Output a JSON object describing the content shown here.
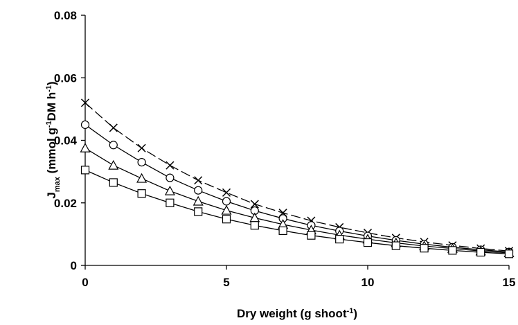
{
  "chart_data": {
    "type": "line",
    "xlabel": [
      "Dry weight (g shoot",
      "-1",
      ")"
    ],
    "ylabel": [
      "J",
      "max",
      "  (mmol g",
      "-1",
      "DM h",
      "-1",
      ")"
    ],
    "x": [
      0,
      1,
      2,
      3,
      4,
      5,
      6,
      7,
      8,
      9,
      10,
      11,
      12,
      13,
      14,
      15
    ],
    "xlim": [
      0,
      15
    ],
    "xticks": [
      0,
      5,
      10,
      15
    ],
    "ylim": [
      0,
      0.08
    ],
    "yticks": [
      0,
      0.02,
      0.04,
      0.06,
      0.08
    ],
    "series": [
      {
        "color": "#000000",
        "marker": "x",
        "dashed": true,
        "values": [
          0.052,
          0.044,
          0.0375,
          0.032,
          0.0272,
          0.0233,
          0.0196,
          0.0168,
          0.0143,
          0.0122,
          0.0104,
          0.0088,
          0.0075,
          0.0064,
          0.0054,
          0.0046
        ]
      },
      {
        "color": "#000000",
        "marker": "circle",
        "dashed": false,
        "values": [
          0.045,
          0.0385,
          0.033,
          0.028,
          0.024,
          0.0205,
          0.0175,
          0.015,
          0.0128,
          0.011,
          0.0094,
          0.008,
          0.0068,
          0.0058,
          0.005,
          0.0043
        ]
      },
      {
        "color": "#000000",
        "marker": "triangle",
        "dashed": false,
        "values": [
          0.0375,
          0.032,
          0.0278,
          0.0238,
          0.0205,
          0.0176,
          0.0152,
          0.0131,
          0.0113,
          0.0097,
          0.0084,
          0.0072,
          0.0062,
          0.0054,
          0.0046,
          0.004
        ]
      },
      {
        "color": "#000000",
        "marker": "square",
        "dashed": false,
        "values": [
          0.0305,
          0.0265,
          0.023,
          0.02,
          0.0172,
          0.0148,
          0.0128,
          0.0111,
          0.0096,
          0.0084,
          0.0073,
          0.0063,
          0.0055,
          0.0048,
          0.0042,
          0.0037
        ]
      }
    ]
  }
}
